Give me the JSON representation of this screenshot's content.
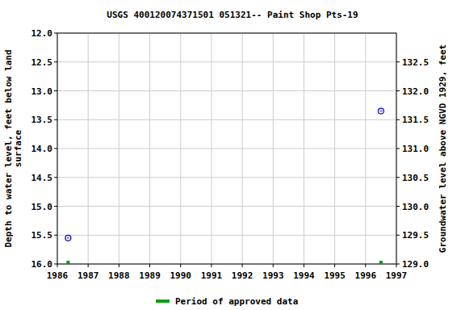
{
  "chart_data": {
    "type": "scatter",
    "title": "USGS 400120074371501 051321-- Paint Shop Pts-19",
    "ylabel": [
      "Depth to water level, feet below land",
      "surface"
    ],
    "y2label": "Groundwater level above NGVD 1929, feet",
    "x": [
      1986.35,
      1996.5
    ],
    "xlim": [
      1986,
      1997
    ],
    "xticks": [
      1986,
      1987,
      1988,
      1989,
      1990,
      1991,
      1992,
      1993,
      1994,
      1995,
      1996,
      1997
    ],
    "ylim": [
      16,
      12
    ],
    "yticks": [
      {
        "value": 12,
        "label": "12.0"
      },
      {
        "value": 12.5,
        "label": "12.5"
      },
      {
        "value": 13,
        "label": "13.0"
      },
      {
        "value": 13.5,
        "label": "13.5"
      },
      {
        "value": 14,
        "label": "14.0"
      },
      {
        "value": 14.5,
        "label": "14.5"
      },
      {
        "value": 15,
        "label": "15.0"
      },
      {
        "value": 15.5,
        "label": "15.5"
      },
      {
        "value": 16,
        "label": "16.0"
      }
    ],
    "y2lim": [
      129,
      133
    ],
    "y2ticks": [
      {
        "value": 129,
        "label": "129.0"
      },
      {
        "value": 129.5,
        "label": "129.5"
      },
      {
        "value": 130,
        "label": "130.0"
      },
      {
        "value": 130.5,
        "label": "130.5"
      },
      {
        "value": 131,
        "label": "131.0"
      },
      {
        "value": 131.5,
        "label": "131.5"
      },
      {
        "value": 132,
        "label": "132.0"
      },
      {
        "value": 132.5,
        "label": "132.5"
      }
    ],
    "grid": true,
    "legend": "bottom",
    "series": [
      {
        "values": [
          15.55,
          13.35
        ],
        "color": "#0000cc",
        "marker": "circle"
      },
      {
        "name": "Period of approved data",
        "values": [
          16,
          16
        ],
        "color": "#00a000",
        "marker": "square"
      }
    ]
  }
}
